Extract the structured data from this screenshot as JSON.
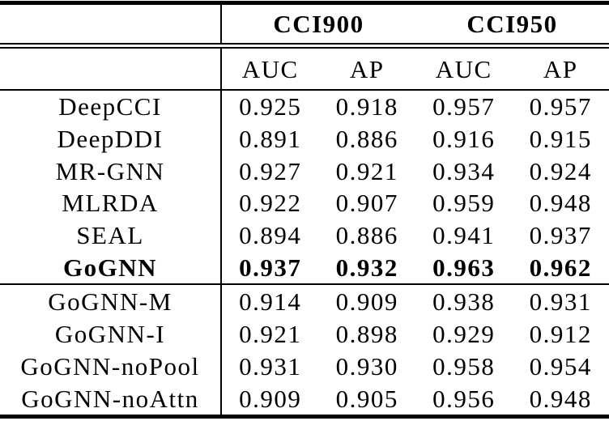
{
  "table": {
    "column_groups": [
      "CCI900",
      "CCI950"
    ],
    "metric_headers": [
      "AUC",
      "AP",
      "AUC",
      "AP"
    ],
    "sections": [
      {
        "rows": [
          {
            "label": "DeepCCI",
            "bold": false,
            "values": [
              "0.925",
              "0.918",
              "0.957",
              "0.957"
            ]
          },
          {
            "label": "DeepDDI",
            "bold": false,
            "values": [
              "0.891",
              "0.886",
              "0.916",
              "0.915"
            ]
          },
          {
            "label": "MR-GNN",
            "bold": false,
            "values": [
              "0.927",
              "0.921",
              "0.934",
              "0.924"
            ]
          },
          {
            "label": "MLRDA",
            "bold": false,
            "values": [
              "0.922",
              "0.907",
              "0.959",
              "0.948"
            ]
          },
          {
            "label": "SEAL",
            "bold": false,
            "values": [
              "0.894",
              "0.886",
              "0.941",
              "0.937"
            ]
          },
          {
            "label": "GoGNN",
            "bold": true,
            "values": [
              "0.937",
              "0.932",
              "0.963",
              "0.962"
            ]
          }
        ]
      },
      {
        "rows": [
          {
            "label": "GoGNN-M",
            "bold": false,
            "values": [
              "0.914",
              "0.909",
              "0.938",
              "0.931"
            ]
          },
          {
            "label": "GoGNN-I",
            "bold": false,
            "values": [
              "0.921",
              "0.898",
              "0.929",
              "0.912"
            ]
          },
          {
            "label": "GoGNN-noPool",
            "bold": false,
            "values": [
              "0.931",
              "0.930",
              "0.958",
              "0.954"
            ]
          },
          {
            "label": "GoGNN-noAttn",
            "bold": false,
            "values": [
              "0.909",
              "0.905",
              "0.956",
              "0.948"
            ]
          }
        ]
      }
    ]
  },
  "colors": {
    "background": "#ffffff",
    "text": "#000000",
    "rule": "#000000"
  }
}
